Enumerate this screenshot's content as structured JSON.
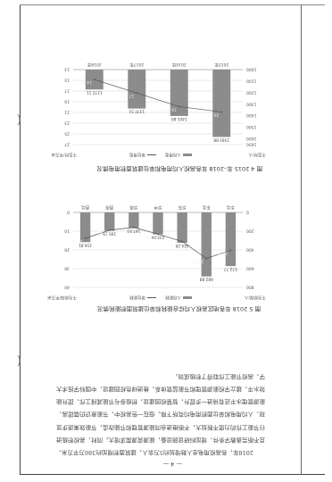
{
  "page_number": "— 4 —",
  "chart_data": [
    {
      "type": "bar",
      "title": "图 4  2015 年–2018 年各高校人均用电和单位建筑面积用电情况",
      "legend": [
        "人均用电",
        "单位用电"
      ],
      "ylabel_left": "千瓦时/平方米",
      "ylabel_right": "千瓦时/人",
      "categories": [
        "2015年",
        "2016年",
        "2017年",
        "2018年"
      ],
      "series": [
        {
          "name": "人均用电",
          "values": [
            1583.88,
            1401.8,
            1337.51,
            1172.11
          ],
          "labels": [
            "1583.88",
            "1401.80",
            "1337.51",
            "1172.11"
          ],
          "color": "#8c8c8c"
        },
        {
          "name": "单位用电",
          "values": [
            20.91,
            19.91,
            17.37,
            14.84
          ],
          "labels": [
            "20.91",
            "19.91",
            "17.37",
            "14.84"
          ],
          "color": "#555555"
        }
      ],
      "ylim_left": [
        13,
        27
      ],
      "yticks_left": [
        "13",
        "15",
        "17",
        "19",
        "21",
        "23",
        "25",
        "27"
      ],
      "ylim_right": [
        1000,
        1650
      ],
      "yticks_right": [
        "1000",
        "1100",
        "1200",
        "1300",
        "1400",
        "1500",
        "1600",
        "1650"
      ]
    },
    {
      "type": "bar",
      "title": "图 5  2018 年各地区高校人均综合能耗和单位建筑面积能耗情况",
      "legend": [
        "人均能耗",
        "单位能耗"
      ],
      "ylabel_left": "千克标煤/平方米",
      "ylabel_right": "千克标煤/人",
      "categories": [
        "华北",
        "东北",
        "华东",
        "华中",
        "华南",
        "西南",
        "西北"
      ],
      "series": [
        {
          "name": "人均能耗",
          "values": [
            572.77,
            682.88,
            324.28,
            233.86,
            167.83,
            195.18,
            316.81
          ],
          "labels": [
            "572.77",
            "682.88",
            "324.28",
            "233.86",
            "167.83",
            "195.18",
            "316.81"
          ],
          "color": "#8c8c8c"
        },
        {
          "name": "单位能耗",
          "values": [
            20.26,
            24.52,
            15.5,
            11.59,
            7.99,
            9.47,
            13.81
          ],
          "labels": [
            "20.26",
            "24.52",
            "15.5",
            "11.59",
            "7.99",
            "9.47",
            "13.81"
          ],
          "color": "#555555"
        }
      ],
      "ylim_left": [
        0,
        40
      ],
      "yticks_left": [
        "0",
        "10",
        "20",
        "30",
        "40"
      ],
      "ylim_right": [
        0,
        800
      ],
      "yticks_right": [
        "0",
        "200",
        "400",
        "600",
        "800"
      ]
    }
  ],
  "body_paragraphs": [
    "2018年，各高校用电总人数增加约5万余人，建筑面积增加约386万平方米，且不断完善教学条件，增加科研设施设备，能源资源需求增大。同时，高校积极进行节能工作的力度不断加大，不断推进合同能源管理和节能改造，节能效果逐步显现，人均用电和单位面积用电均有所下降。但在一些高校中，节能意识仍需提高，能源管理水平还有待进一步提升，智慧校园建设，积极参与节能减排工作，提升能效水平，建立学校能源管理和节能监管体系，推进绿色校园建设，中国科学技术大学，高校节能工作取得了积极成效。"
  ]
}
